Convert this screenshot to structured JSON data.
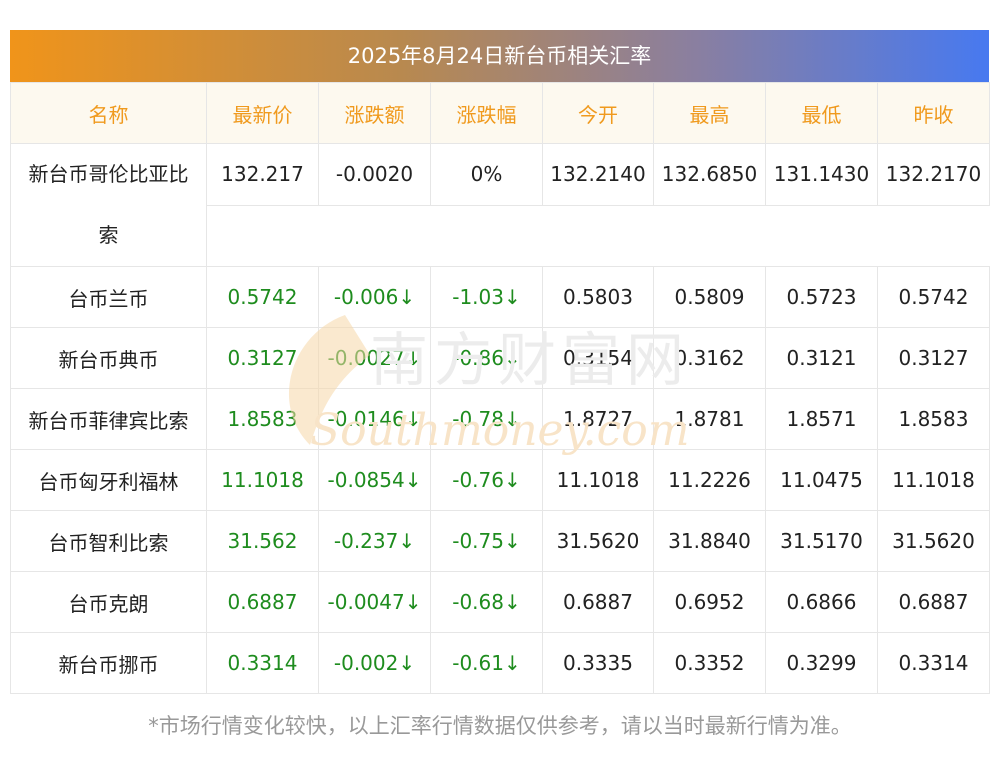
{
  "title": "2025年8月24日新台币相关汇率",
  "headers": [
    "名称",
    "最新价",
    "涨跌额",
    "涨跌幅",
    "今开",
    "最高",
    "最低",
    "昨收"
  ],
  "rows": [
    {
      "name": "新台币哥伦比亚比",
      "name2": "索",
      "latest": "132.217",
      "change": "-0.0020",
      "pct": "0%",
      "open": "132.2140",
      "high": "132.6850",
      "low": "131.1430",
      "prev": "132.2170"
    },
    {
      "name": "台币兰币",
      "latest": "0.5742",
      "change": "-0.006↓",
      "pct": "-1.03↓",
      "open": "0.5803",
      "high": "0.5809",
      "low": "0.5723",
      "prev": "0.5742"
    },
    {
      "name": "新台币典币",
      "latest": "0.3127",
      "change": "-0.0027↓",
      "pct": "-0.86↓",
      "open": "0.3154",
      "high": "0.3162",
      "low": "0.3121",
      "prev": "0.3127"
    },
    {
      "name": "新台币菲律宾比索",
      "latest": "1.8583",
      "change": "-0.0146↓",
      "pct": "-0.78↓",
      "open": "1.8727",
      "high": "1.8781",
      "low": "1.8571",
      "prev": "1.8583"
    },
    {
      "name": "台币匈牙利福林",
      "latest": "11.1018",
      "change": "-0.0854↓",
      "pct": "-0.76↓",
      "open": "11.1018",
      "high": "11.2226",
      "low": "11.0475",
      "prev": "11.1018"
    },
    {
      "name": "台币智利比索",
      "latest": "31.562",
      "change": "-0.237↓",
      "pct": "-0.75↓",
      "open": "31.5620",
      "high": "31.8840",
      "low": "31.5170",
      "prev": "31.5620"
    },
    {
      "name": "台币克朗",
      "latest": "0.6887",
      "change": "-0.0047↓",
      "pct": "-0.68↓",
      "open": "0.6887",
      "high": "0.6952",
      "low": "0.6866",
      "prev": "0.6887"
    },
    {
      "name": "新台币挪币",
      "latest": "0.3314",
      "change": "-0.002↓",
      "pct": "-0.61↓",
      "open": "0.3335",
      "high": "0.3352",
      "low": "0.3299",
      "prev": "0.3314"
    }
  ],
  "watermark": {
    "cn": "南方财富网",
    "en": "Southmoney.com"
  },
  "footer": "*市场行情变化较快，以上汇率行情数据仅供参考，请以当时最新行情为准。",
  "colors": {
    "header_text": "#f09a1e",
    "down": "#1e8c1e",
    "gradient_start": "#f0941a",
    "gradient_end": "#4779f0"
  }
}
